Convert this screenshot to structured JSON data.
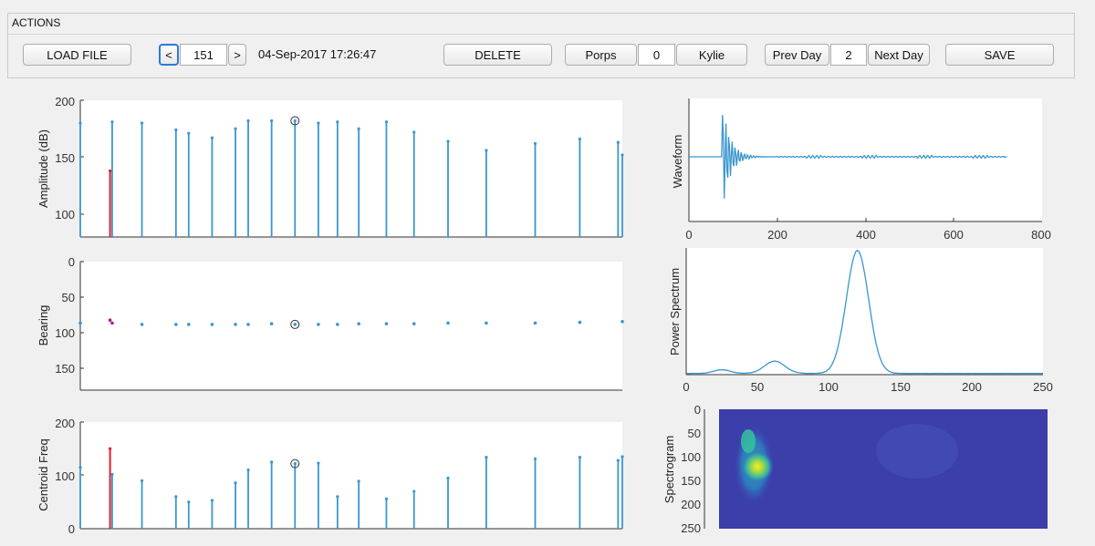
{
  "toolbar": {
    "title": "ACTIONS",
    "load_label": "LOAD FILE",
    "prev_label": "<",
    "index_value": "151",
    "next_label": ">",
    "datetime": "04-Sep-2017 17:26:47",
    "delete_label": "DELETE",
    "porps_label": "Porps",
    "porps_value": "0",
    "kylie_label": "Kylie",
    "prev_day_label": "Prev Day",
    "day_value": "2",
    "next_day_label": "Next Day",
    "save_label": "SAVE"
  },
  "colors": {
    "series": "#3a96d0",
    "selected": "#e0202a",
    "bearing_selected": "#b21a8c",
    "marker": "#333333"
  },
  "click_x": [
    0,
    6.5,
    14,
    22,
    25,
    30.5,
    36,
    39,
    44.5,
    50,
    55.5,
    60,
    65,
    71.5,
    78,
    86,
    95,
    106.5,
    117,
    126
  ],
  "selected_index": 1,
  "highlight_index": 9,
  "chart_data": [
    {
      "type": "stem",
      "ylabel": "Amplitude (dB)",
      "ylim": [
        80,
        200
      ],
      "yticks": [
        "200",
        "150",
        "100"
      ],
      "values": [
        180,
        138,
        181,
        180,
        174,
        171,
        167,
        175,
        182,
        182,
        182,
        180,
        181,
        175,
        181,
        172,
        164,
        156,
        162,
        166,
        163,
        152
      ],
      "x": [
        -0.5,
        6.5,
        7,
        14,
        22,
        25,
        30.5,
        36,
        39,
        44.5,
        50,
        55.5,
        60,
        65,
        71.5,
        78,
        86,
        95,
        106.5,
        117,
        126,
        127
      ]
    },
    {
      "type": "scatter",
      "ylabel": "Bearing",
      "ylim": [
        0,
        180
      ],
      "yticks": [
        "0",
        "50",
        "100",
        "150"
      ],
      "values": [
        86,
        82,
        86,
        88,
        88,
        88,
        88,
        88,
        88,
        87,
        88,
        88,
        88,
        87,
        87,
        87,
        86,
        86,
        86,
        85,
        84
      ],
      "x": [
        -0.5,
        6.5,
        7,
        14,
        22,
        25,
        30.5,
        36,
        39,
        44.5,
        50,
        55.5,
        60,
        65,
        71.5,
        78,
        86,
        95,
        106.5,
        117,
        127
      ]
    },
    {
      "type": "stem",
      "ylabel": "Centroid Freq",
      "ylim": [
        0,
        200
      ],
      "yticks": [
        "200",
        "100",
        "0"
      ],
      "values": [
        115,
        150,
        102,
        90,
        60,
        50,
        53,
        86,
        110,
        125,
        122,
        123,
        60,
        89,
        56,
        70,
        95,
        134,
        131,
        134,
        128,
        135
      ],
      "x": [
        -0.5,
        6.5,
        7,
        14,
        22,
        25,
        30.5,
        36,
        39,
        44.5,
        50,
        55.5,
        60,
        65,
        71.5,
        78,
        86,
        95,
        106.5,
        117,
        126,
        127
      ]
    },
    {
      "type": "line",
      "ylabel": "Waveform",
      "xlim": [
        0,
        800
      ],
      "xticks": [
        "0",
        "200",
        "400",
        "600",
        "800"
      ]
    },
    {
      "type": "line",
      "ylabel": "Power Spectrum",
      "xlim": [
        0,
        250
      ],
      "xticks": [
        "0",
        "50",
        "100",
        "150",
        "200",
        "250"
      ]
    },
    {
      "type": "heatmap",
      "ylabel": "Spectrogram",
      "ylim": [
        0,
        250
      ],
      "yticks": [
        "0",
        "50",
        "100",
        "150",
        "200",
        "250"
      ],
      "hotspot": {
        "x": 40,
        "y": 120
      }
    }
  ]
}
